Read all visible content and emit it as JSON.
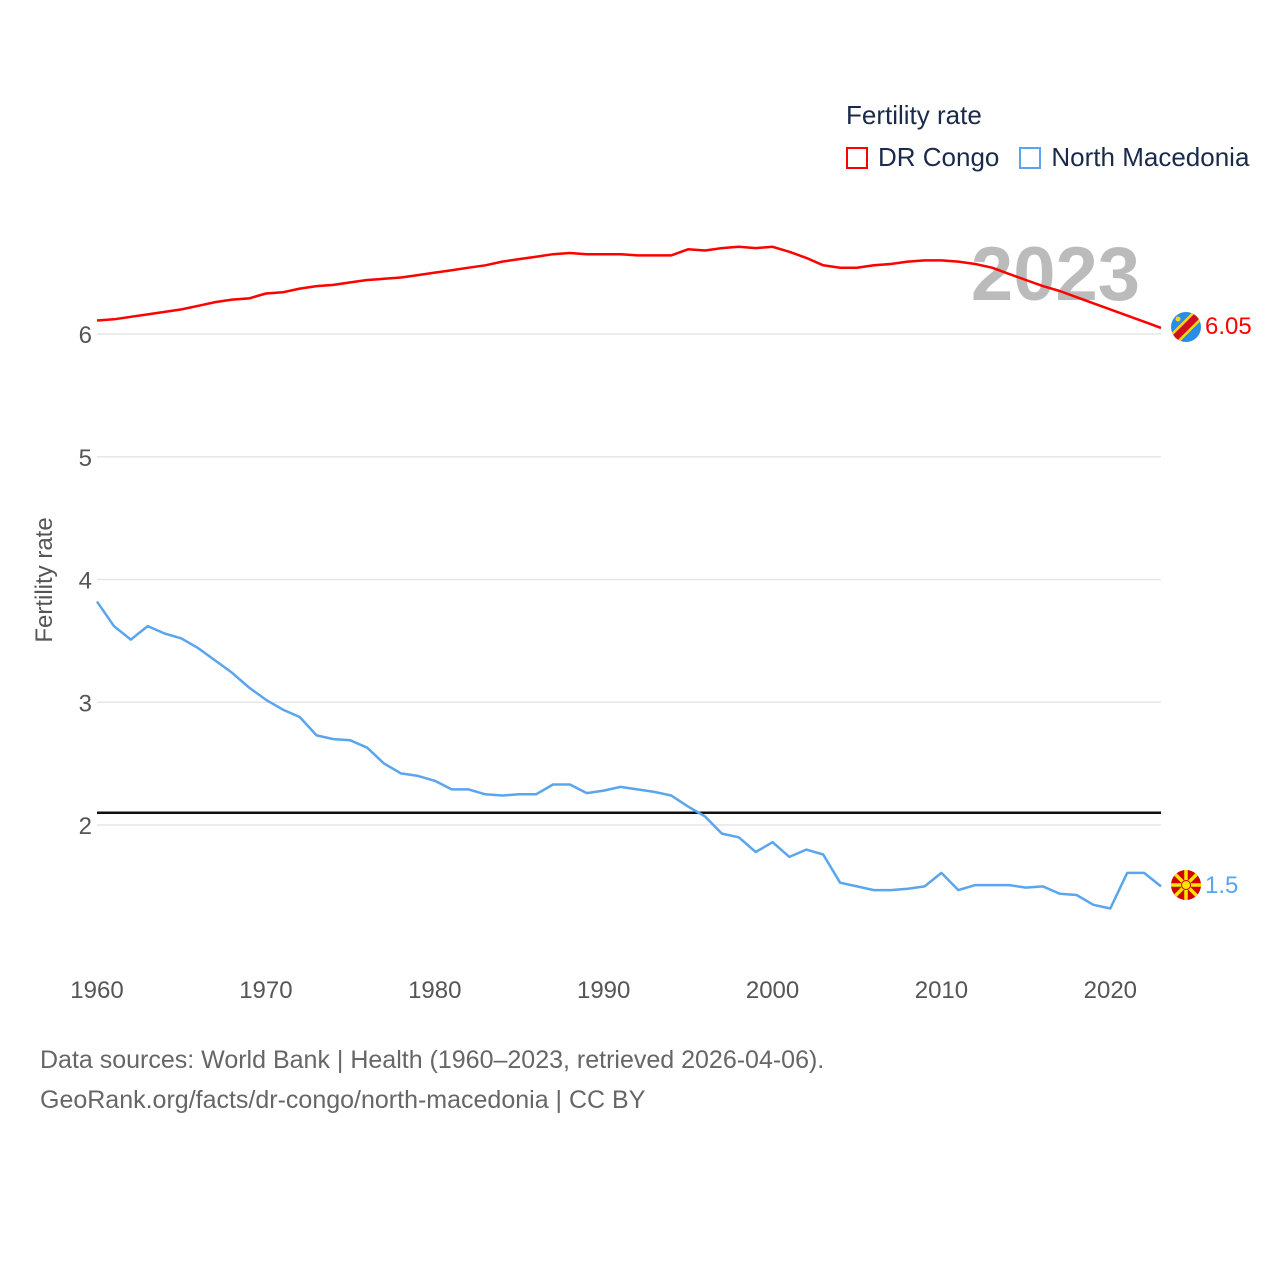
{
  "chart_data": {
    "type": "line",
    "title": "Fertility rate",
    "ylabel": "Fertility rate",
    "xlabel": "",
    "year_label": "2023",
    "ylim": [
      1.0,
      6.9
    ],
    "xlim": [
      1960,
      2023
    ],
    "yticks": [
      "2",
      "3",
      "4",
      "5",
      "6"
    ],
    "xticks": [
      "1960",
      "1970",
      "1980",
      "1990",
      "2000",
      "2010",
      "2020"
    ],
    "reference_line": 2.1,
    "legend": {
      "title": "Fertility rate",
      "placement": "top-right"
    },
    "x": [
      1960,
      1961,
      1962,
      1963,
      1964,
      1965,
      1966,
      1967,
      1968,
      1969,
      1970,
      1971,
      1972,
      1973,
      1974,
      1975,
      1976,
      1977,
      1978,
      1979,
      1980,
      1981,
      1982,
      1983,
      1984,
      1985,
      1986,
      1987,
      1988,
      1989,
      1990,
      1991,
      1992,
      1993,
      1994,
      1995,
      1996,
      1997,
      1998,
      1999,
      2000,
      2001,
      2002,
      2003,
      2004,
      2005,
      2006,
      2007,
      2008,
      2009,
      2010,
      2011,
      2012,
      2013,
      2014,
      2015,
      2016,
      2017,
      2018,
      2019,
      2020,
      2021,
      2022,
      2023
    ],
    "series": [
      {
        "name": "DR Congo",
        "color": "#ff0000",
        "end_label": "6.05",
        "values": [
          6.11,
          6.12,
          6.14,
          6.16,
          6.18,
          6.2,
          6.23,
          6.26,
          6.28,
          6.29,
          6.33,
          6.34,
          6.37,
          6.39,
          6.4,
          6.42,
          6.44,
          6.45,
          6.46,
          6.48,
          6.5,
          6.52,
          6.54,
          6.56,
          6.59,
          6.61,
          6.63,
          6.65,
          6.66,
          6.65,
          6.65,
          6.65,
          6.64,
          6.64,
          6.64,
          6.69,
          6.68,
          6.7,
          6.71,
          6.7,
          6.71,
          6.67,
          6.62,
          6.56,
          6.54,
          6.54,
          6.56,
          6.57,
          6.59,
          6.6,
          6.6,
          6.59,
          6.57,
          6.54,
          6.49,
          6.44,
          6.39,
          6.35,
          6.3,
          6.25,
          6.2,
          6.15,
          6.1,
          6.05
        ]
      },
      {
        "name": "North Macedonia",
        "color": "#5aa5ee",
        "end_label": "1.5",
        "values": [
          3.82,
          3.62,
          3.51,
          3.62,
          3.56,
          3.52,
          3.44,
          3.34,
          3.24,
          3.12,
          3.02,
          2.94,
          2.88,
          2.73,
          2.7,
          2.69,
          2.63,
          2.5,
          2.42,
          2.4,
          2.36,
          2.29,
          2.29,
          2.25,
          2.24,
          2.25,
          2.25,
          2.33,
          2.33,
          2.26,
          2.28,
          2.31,
          2.29,
          2.27,
          2.24,
          2.15,
          2.07,
          1.93,
          1.9,
          1.78,
          1.86,
          1.74,
          1.8,
          1.76,
          1.53,
          1.5,
          1.47,
          1.47,
          1.48,
          1.5,
          1.61,
          1.47,
          1.51,
          1.51,
          1.51,
          1.49,
          1.5,
          1.44,
          1.43,
          1.35,
          1.32,
          1.61,
          1.61,
          1.5
        ]
      }
    ]
  },
  "footer": {
    "line1": "Data sources: World Bank | Health (1960–2023, retrieved 2026-04-06).",
    "line2": "GeoRank.org/facts/dr-congo/north-macedonia | CC BY"
  }
}
